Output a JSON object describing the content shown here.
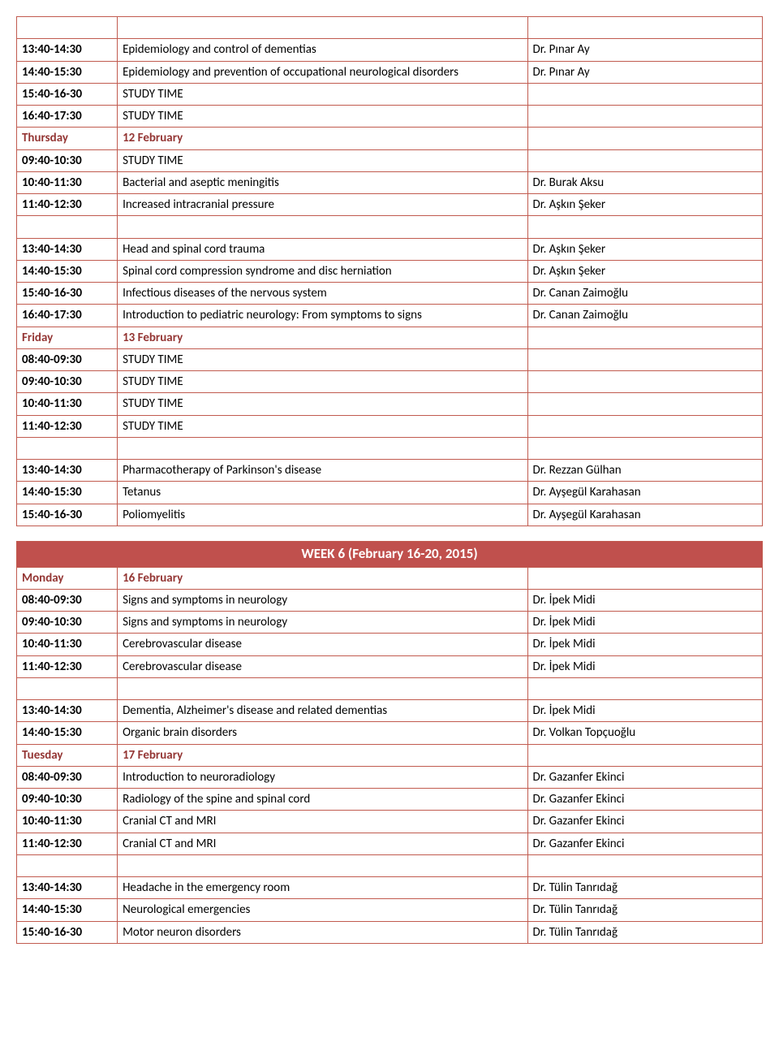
{
  "styling": {
    "border_color": "#c15b4f",
    "header_bg": "#c0504d",
    "header_text_color": "#ffffff",
    "day_text_color": "#943634",
    "date_text_color": "#943634",
    "body_text_color": "#000000",
    "background": "#ffffff",
    "font_family": "Calibri, Arial, sans-serif",
    "font_size_body": 15,
    "font_size_header": 17
  },
  "tables": [
    {
      "header": null,
      "rows": [
        {
          "type": "blank"
        },
        {
          "type": "session",
          "time": "13:40-14:30",
          "topic": "Epidemiology and control of dementias",
          "speaker": "Dr. Pınar Ay"
        },
        {
          "type": "session",
          "time": "14:40-15:30",
          "topic": "Epidemiology and prevention of occupational neurological disorders",
          "speaker": "Dr. Pınar Ay"
        },
        {
          "type": "session",
          "time": "15:40-16-30",
          "topic": "STUDY TIME",
          "speaker": ""
        },
        {
          "type": "session",
          "time": "16:40-17:30",
          "topic": "STUDY TIME",
          "speaker": ""
        },
        {
          "type": "day",
          "day": "Thursday",
          "date": "12 February"
        },
        {
          "type": "session",
          "time": "09:40-10:30",
          "topic": "STUDY TIME",
          "speaker": ""
        },
        {
          "type": "session",
          "time": "10:40-11:30",
          "topic": "Bacterial and aseptic meningitis",
          "speaker": "Dr. Burak Aksu"
        },
        {
          "type": "session",
          "time": "11:40-12:30",
          "topic": "Increased intracranial pressure",
          "speaker": "Dr. Aşkın Şeker"
        },
        {
          "type": "blank"
        },
        {
          "type": "session",
          "time": "13:40-14:30",
          "topic": "Head and spinal cord trauma",
          "speaker": "Dr. Aşkın Şeker"
        },
        {
          "type": "session",
          "time": "14:40-15:30",
          "topic": "Spinal cord compression syndrome and disc herniation",
          "speaker": "Dr. Aşkın Şeker"
        },
        {
          "type": "session",
          "time": "15:40-16-30",
          "topic": "Infectious diseases of the nervous system",
          "speaker": "Dr. Canan Zaimoğlu"
        },
        {
          "type": "session",
          "time": "16:40-17:30",
          "topic": "Introduction to pediatric neurology: From symptoms to signs",
          "speaker": "Dr. Canan Zaimoğlu"
        },
        {
          "type": "day",
          "day": "Friday",
          "date": "13 February"
        },
        {
          "type": "session",
          "time": "08:40-09:30",
          "topic": "STUDY TIME",
          "speaker": ""
        },
        {
          "type": "session",
          "time": "09:40-10:30",
          "topic": "STUDY TIME",
          "speaker": ""
        },
        {
          "type": "session",
          "time": "10:40-11:30",
          "topic": "STUDY TIME",
          "speaker": ""
        },
        {
          "type": "session",
          "time": "11:40-12:30",
          "topic": "STUDY TIME",
          "speaker": ""
        },
        {
          "type": "blank"
        },
        {
          "type": "session",
          "time": "13:40-14:30",
          "topic": "Pharmacotherapy of Parkinson's disease",
          "speaker": "Dr. Rezzan Gülhan"
        },
        {
          "type": "session",
          "time": "14:40-15:30",
          "topic": "Tetanus",
          "speaker": "Dr. Ayşegül Karahasan"
        },
        {
          "type": "session",
          "time": "15:40-16-30",
          "topic": "Poliomyelitis",
          "speaker": "Dr. Ayşegül Karahasan"
        }
      ]
    },
    {
      "header": "WEEK 6 (February 16-20, 2015)",
      "rows": [
        {
          "type": "day",
          "day": "Monday",
          "date": "16 February"
        },
        {
          "type": "session",
          "time": "08:40-09:30",
          "topic": "Signs and symptoms in neurology",
          "speaker": "Dr. İpek Midi"
        },
        {
          "type": "session",
          "time": "09:40-10:30",
          "topic": "Signs and symptoms in neurology",
          "speaker": "Dr. İpek Midi"
        },
        {
          "type": "session",
          "time": "10:40-11:30",
          "topic": "Cerebrovascular disease",
          "speaker": "Dr. İpek Midi"
        },
        {
          "type": "session",
          "time": "11:40-12:30",
          "topic": "Cerebrovascular disease",
          "speaker": "Dr. İpek Midi"
        },
        {
          "type": "blank"
        },
        {
          "type": "session",
          "time": "13:40-14:30",
          "topic": "Dementia, Alzheimer's disease and related dementias",
          "speaker": "Dr. İpek Midi"
        },
        {
          "type": "session",
          "time": "14:40-15:30",
          "topic": "Organic brain disorders",
          "speaker": "Dr. Volkan Topçuoğlu"
        },
        {
          "type": "day",
          "day": "Tuesday",
          "date": "17 February"
        },
        {
          "type": "session",
          "time": "08:40-09:30",
          "topic": "Introduction to neuroradiology",
          "speaker": "Dr. Gazanfer Ekinci"
        },
        {
          "type": "session",
          "time": "09:40-10:30",
          "topic": "Radiology of the spine and spinal cord",
          "speaker": "Dr. Gazanfer Ekinci"
        },
        {
          "type": "session",
          "time": "10:40-11:30",
          "topic": "Cranial CT and MRI",
          "speaker": "Dr. Gazanfer Ekinci"
        },
        {
          "type": "session",
          "time": "11:40-12:30",
          "topic": "Cranial CT and MRI",
          "speaker": "Dr. Gazanfer Ekinci"
        },
        {
          "type": "blank"
        },
        {
          "type": "session",
          "time": "13:40-14:30",
          "topic": "Headache in the emergency room",
          "speaker": "Dr. Tülin Tanrıdağ"
        },
        {
          "type": "session",
          "time": "14:40-15:30",
          "topic": "Neurological emergencies",
          "speaker": "Dr. Tülin Tanrıdağ"
        },
        {
          "type": "session",
          "time": "15:40-16-30",
          "topic": "Motor neuron disorders",
          "speaker": "Dr. Tülin Tanrıdağ"
        }
      ]
    }
  ]
}
